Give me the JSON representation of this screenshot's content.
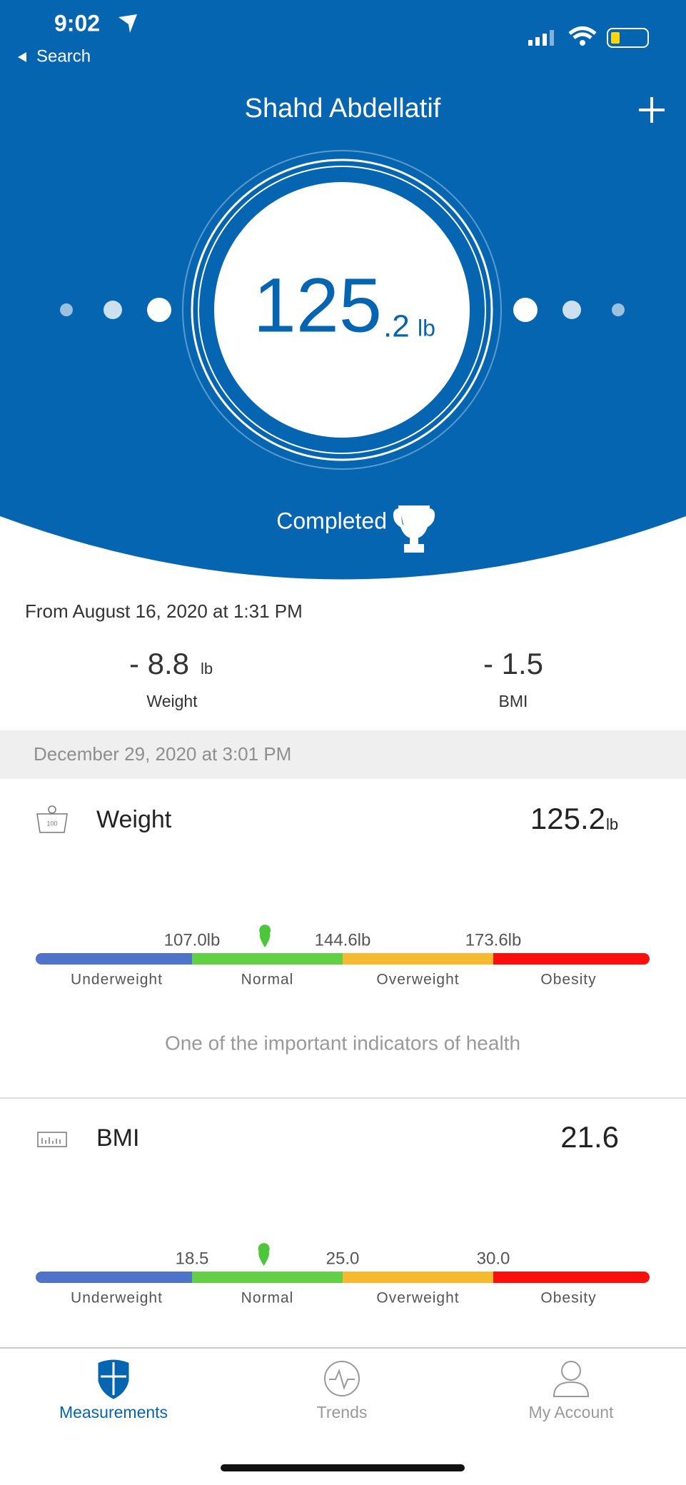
{
  "status_bar": {
    "time": "9:02",
    "back": "Search"
  },
  "header": {
    "title": "Shahd Abdellatif"
  },
  "gauge": {
    "whole": "125",
    "decimal": ".2",
    "unit": "lb",
    "status": "Completed"
  },
  "since": {
    "label": "From August 16, 2020 at 1:31 PM",
    "changes": [
      {
        "value": "- 8.8",
        "unit": "lb",
        "label": "Weight"
      },
      {
        "value": "- 1.5",
        "label": "BMI"
      }
    ]
  },
  "date": "December 29, 2020 at 3:01 PM",
  "metrics": [
    {
      "name": "Weight",
      "icon_text": "100",
      "value": 125.2,
      "unit": "lb",
      "thresholds": [
        {
          "value": 107.0,
          "label": "107.0lb"
        },
        {
          "value": 144.6,
          "label": "144.6lb"
        },
        {
          "value": 173.6,
          "label": "173.6lb"
        }
      ],
      "ranges": [
        "Underweight",
        "Normal",
        "Overweight",
        "Obesity"
      ],
      "note": "One of the important indicators of health"
    },
    {
      "name": "BMI",
      "value": 21.6,
      "thresholds": [
        {
          "value": 18.5,
          "label": "18.5"
        },
        {
          "value": 25.0,
          "label": "25.0"
        },
        {
          "value": 30.0,
          "label": "30.0"
        }
      ],
      "ranges": [
        "Underweight",
        "Normal",
        "Overweight",
        "Obesity"
      ]
    }
  ],
  "tabs": [
    "Measurements",
    "Trends",
    "My Account"
  ]
}
